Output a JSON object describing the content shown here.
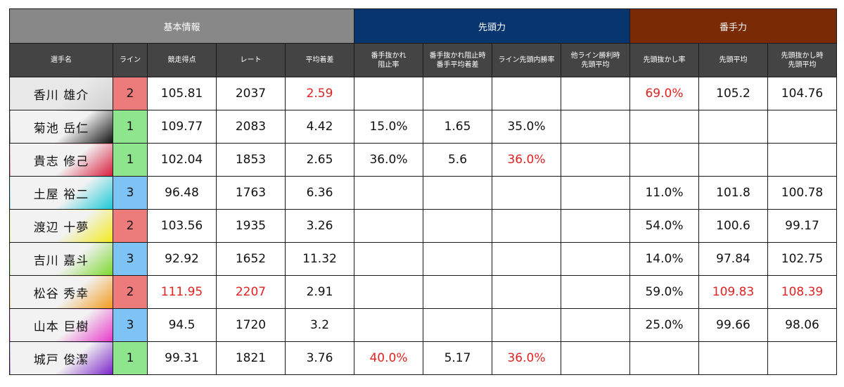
{
  "group_headers": [
    "基本情報",
    "先頭力",
    "番手力"
  ],
  "column_headers": [
    [
      "選手名"
    ],
    [
      "ライン"
    ],
    [
      "競走得点"
    ],
    [
      "レート"
    ],
    [
      "平均着差"
    ],
    [
      "番手抜かれ",
      "阻止率"
    ],
    [
      "番手抜かれ阻止時",
      "番手平均着差"
    ],
    [
      "ライン先頭内勝率"
    ],
    [
      "他ライン勝利時",
      "先頭平均"
    ],
    [
      "先頭抜かし率"
    ],
    [
      "先頭平均"
    ],
    [
      "先頭抜かし時",
      "先頭平均"
    ]
  ],
  "colors": {
    "basic_header": "#888888",
    "lead_header": "#07356f",
    "ban_header": "#7a2a05",
    "column_header": "#444444",
    "highlight": "#e22222",
    "line_1": "#8ee58e",
    "line_2": "#ee7b7b",
    "line_3": "#7ec3f5"
  },
  "rows": [
    {
      "name": "香川 雄介",
      "line": "2",
      "score": "105.81",
      "rate": "2037",
      "margin": "2.59",
      "block": "",
      "block_margin": "",
      "line_win": "",
      "other_lead": "",
      "overtake": "69.0%",
      "lead_avg": "105.2",
      "overtake_avg": "104.76",
      "swatch": [
        "#cfcfcf",
        "#e8e8e8"
      ],
      "red": [
        "margin",
        "overtake"
      ]
    },
    {
      "name": "菊池 岳仁",
      "line": "1",
      "score": "109.77",
      "rate": "2083",
      "margin": "4.42",
      "block": "15.0%",
      "block_margin": "1.65",
      "line_win": "35.0%",
      "other_lead": "",
      "overtake": "",
      "lead_avg": "",
      "overtake_avg": "",
      "swatch": [
        "#111111",
        "#f2f2f2"
      ],
      "red": []
    },
    {
      "name": "貴志 修己",
      "line": "1",
      "score": "102.04",
      "rate": "1853",
      "margin": "2.65",
      "block": "36.0%",
      "block_margin": "5.6",
      "line_win": "36.0%",
      "other_lead": "",
      "overtake": "",
      "lead_avg": "",
      "overtake_avg": "",
      "swatch": [
        "#d81b3c",
        "#f2f2f2"
      ],
      "red": [
        "line_win"
      ]
    },
    {
      "name": "土屋 裕二",
      "line": "3",
      "score": "96.48",
      "rate": "1763",
      "margin": "6.36",
      "block": "",
      "block_margin": "",
      "line_win": "",
      "other_lead": "",
      "overtake": "11.0%",
      "lead_avg": "101.8",
      "overtake_avg": "100.78",
      "swatch": [
        "#19c9d8",
        "#f2f2f2"
      ],
      "red": []
    },
    {
      "name": "渡辺 十夢",
      "line": "2",
      "score": "103.56",
      "rate": "1935",
      "margin": "3.26",
      "block": "",
      "block_margin": "",
      "line_win": "",
      "other_lead": "",
      "overtake": "54.0%",
      "lead_avg": "100.6",
      "overtake_avg": "99.17",
      "swatch": [
        "#f3ea1a",
        "#f2f2f2"
      ],
      "red": []
    },
    {
      "name": "吉川 嘉斗",
      "line": "3",
      "score": "92.92",
      "rate": "1652",
      "margin": "11.32",
      "block": "",
      "block_margin": "",
      "line_win": "",
      "other_lead": "",
      "overtake": "14.0%",
      "lead_avg": "97.84",
      "overtake_avg": "102.75",
      "swatch": [
        "#7bd82a",
        "#f2f2f2"
      ],
      "red": []
    },
    {
      "name": "松谷 秀幸",
      "line": "2",
      "score": "111.95",
      "rate": "2207",
      "margin": "2.91",
      "block": "",
      "block_margin": "",
      "line_win": "",
      "other_lead": "",
      "overtake": "59.0%",
      "lead_avg": "109.83",
      "overtake_avg": "108.39",
      "swatch": [
        "#f39a1a",
        "#f2f2f2"
      ],
      "red": [
        "score",
        "rate",
        "lead_avg",
        "overtake_avg"
      ]
    },
    {
      "name": "山本 巨樹",
      "line": "3",
      "score": "94.5",
      "rate": "1720",
      "margin": "3.2",
      "block": "",
      "block_margin": "",
      "line_win": "",
      "other_lead": "",
      "overtake": "25.0%",
      "lead_avg": "99.66",
      "overtake_avg": "98.06",
      "swatch": [
        "#e838c8",
        "#f2f2f2"
      ],
      "red": []
    },
    {
      "name": "城戸 俊潔",
      "line": "1",
      "score": "99.31",
      "rate": "1821",
      "margin": "3.76",
      "block": "40.0%",
      "block_margin": "5.17",
      "line_win": "36.0%",
      "other_lead": "",
      "overtake": "",
      "lead_avg": "",
      "overtake_avg": "",
      "swatch": [
        "#7a22c8",
        "#f2f2f2"
      ],
      "red": [
        "block",
        "line_win"
      ]
    }
  ]
}
